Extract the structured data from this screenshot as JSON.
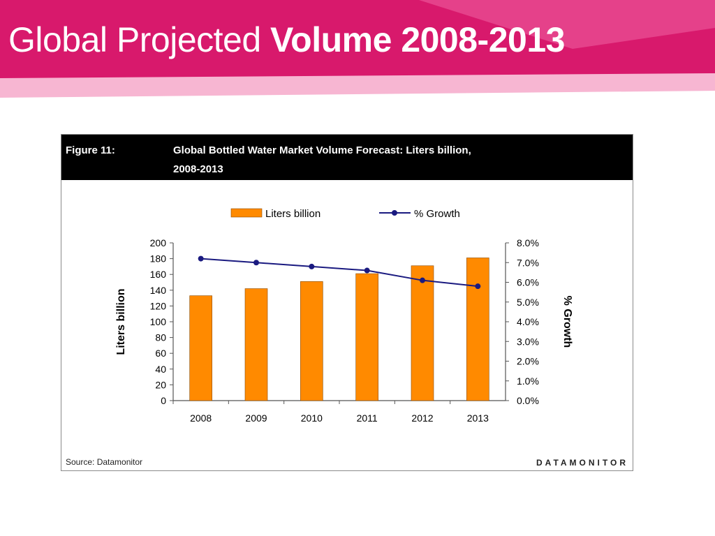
{
  "slide": {
    "title_regular": "Global Projected ",
    "title_bold": "Volume 2008-2013",
    "colors": {
      "banner": "#d8196c",
      "banner_light": "#f28cbc"
    }
  },
  "figure": {
    "label": "Figure 11:",
    "title_line1": "Global Bottled Water Market Volume Forecast: Liters billion,",
    "title_line2": "2008-2013",
    "source": "Source: Datamonitor",
    "brand": "DATAMONITOR"
  },
  "chart_data": {
    "type": "bar",
    "categories": [
      "2008",
      "2009",
      "2010",
      "2011",
      "2012",
      "2013"
    ],
    "series": [
      {
        "name": "Liters billion",
        "type": "bar",
        "axis": "left",
        "color": "#ff8a00",
        "values": [
          133,
          142,
          151,
          161,
          171,
          181
        ]
      },
      {
        "name": "% Growth",
        "type": "line",
        "axis": "right",
        "color": "#1a1a80",
        "values": [
          7.2,
          7.0,
          6.8,
          6.6,
          6.1,
          5.8
        ]
      }
    ],
    "ylabel": "Liters billion",
    "y2label": "% Growth",
    "ylim": [
      0,
      200
    ],
    "y2lim": [
      0,
      8
    ],
    "yticks": [
      "0",
      "20",
      "40",
      "60",
      "80",
      "100",
      "120",
      "140",
      "160",
      "180",
      "200"
    ],
    "y2ticks": [
      "0.0%",
      "1.0%",
      "2.0%",
      "3.0%",
      "4.0%",
      "5.0%",
      "6.0%",
      "7.0%",
      "8.0%"
    ],
    "legend_position": "top-center",
    "grid": false
  }
}
